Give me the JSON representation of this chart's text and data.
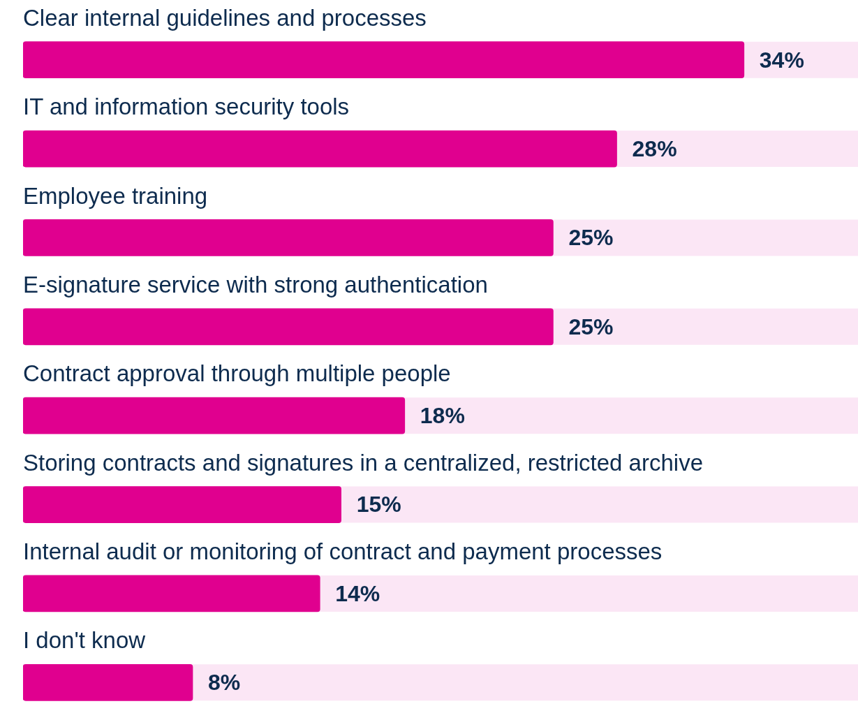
{
  "chart_data": {
    "type": "bar",
    "orientation": "horizontal",
    "categories": [
      "Clear internal guidelines and processes",
      "IT and information security tools",
      "Employee training",
      "E-signature service with strong authentication",
      "Contract approval through multiple people",
      "Storing contracts and signatures in a centralized, restricted archive",
      "Internal audit or monitoring of contract and payment processes",
      "I don't know"
    ],
    "series": [
      {
        "color": "#e0008f",
        "values": [
          34,
          28,
          25,
          25,
          18,
          15,
          14,
          8
        ],
        "value_labels": [
          "34%",
          "28%",
          "25%",
          "25%",
          "18%",
          "15%",
          "14%",
          "8%"
        ]
      }
    ],
    "legend": false
  }
}
